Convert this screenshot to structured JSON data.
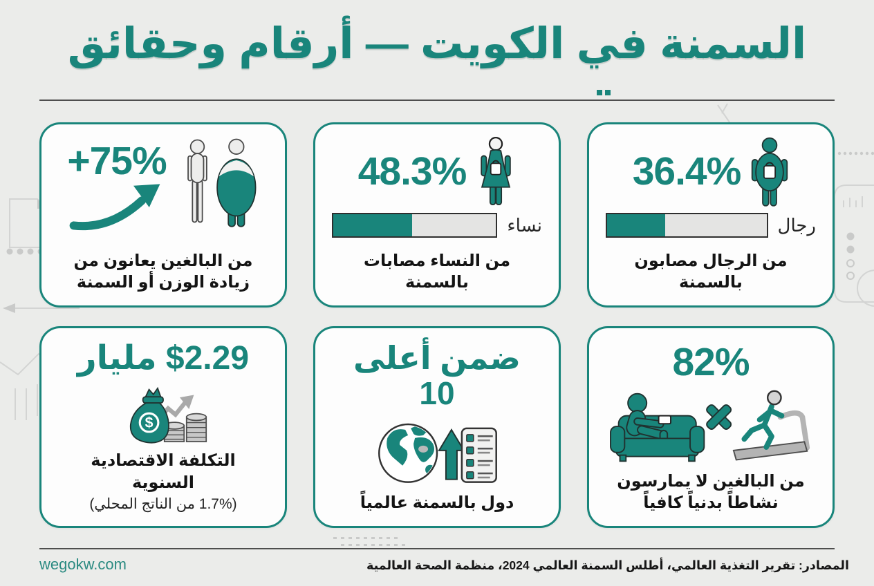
{
  "title": "السمنة في الكويت — أرقام وحقائق",
  "footer": {
    "website": "wegokw.com",
    "sources": "المصادر: تقرير التغذية العالمي، أطلس السمنة العالمي 2024، منظمة الصحة العالمية"
  },
  "colors": {
    "accent": "#19857b",
    "background": "#ebecea",
    "card_background": "#fdfdfd",
    "bar_track": "#e4e4e3",
    "text_dark": "#141414",
    "icon_gray": "#c7c7c7"
  },
  "cards": {
    "men": {
      "value": "36.4%",
      "bar_percent": 36.4,
      "bar_label": "رجال",
      "caption": "من الرجال مصابون بالسمنة",
      "icon": "obese-man-icon"
    },
    "women": {
      "value": "48.3%",
      "bar_percent": 48.3,
      "bar_label": "نساء",
      "caption": "من النساء مصابات بالسمنة",
      "icon": "obese-woman-icon"
    },
    "adults": {
      "value": "+75%",
      "caption_line1": "من البالغين يعانون من",
      "caption_line2": "زيادة الوزن أو السمنة",
      "icon": "thin-vs-obese-figures-icon"
    },
    "inactivity": {
      "value": "82%",
      "caption_line1": "من البالغين لا يمارسون",
      "caption_line2": "نشاطاً بدنياً كافياً",
      "icon": "couch-no-exercise-icon"
    },
    "top10": {
      "value": "ضمن أعلى 10",
      "caption": "دول بالسمنة عالمياً",
      "icon": "globe-ranking-list-icon"
    },
    "cost": {
      "value": "$2.29 مليار",
      "dollar_symbol": "$",
      "caption": "التكلفة الاقتصادية السنوية",
      "subcaption": "(1.7% من الناتج المحلي)",
      "icon": "money-bag-coins-icon"
    }
  },
  "chart_data": {
    "type": "bar",
    "title": "السمنة في الكويت — أرقام وحقائق",
    "categories": [
      "البالغون الذين يعانون من زيادة الوزن أو السمنة",
      "النساء المصابات بالسمنة",
      "الرجال المصابون بالسمنة",
      "البالغون الذين لا يمارسون نشاطاً بدنياً كافياً"
    ],
    "values": [
      75,
      48.3,
      36.4,
      82
    ],
    "unit": "%",
    "extra_facts": {
      "annual_economic_cost": "$2.29 مليار",
      "cost_share_of_gdp_percent": 1.7,
      "global_rank": "ضمن أعلى 10 دول بالسمنة عالمياً"
    },
    "sources": "تقرير التغذية العالمي، أطلس السمنة العالمي 2024، منظمة الصحة العالمية"
  }
}
